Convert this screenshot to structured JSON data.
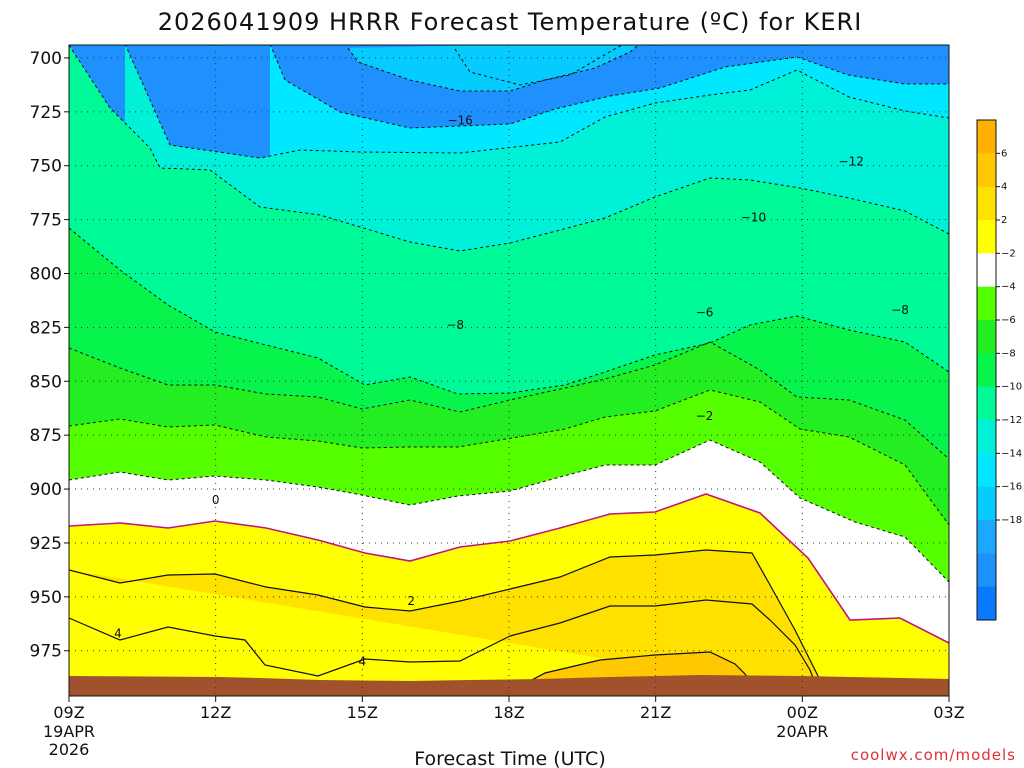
{
  "chart_data": {
    "type": "heatmap",
    "title": "2026041909 HRRR Forecast Temperature (ºC) for KERI",
    "xlabel": "Forecast Time (UTC)",
    "ylabel": "",
    "xlim": [
      9,
      27
    ],
    "ylim": [
      996,
      694
    ],
    "x_ticks": [
      {
        "value": 9,
        "label": "09Z",
        "sub1": "19APR",
        "sub2": "2026"
      },
      {
        "value": 12,
        "label": "12Z",
        "sub1": "",
        "sub2": ""
      },
      {
        "value": 15,
        "label": "15Z",
        "sub1": "",
        "sub2": ""
      },
      {
        "value": 18,
        "label": "18Z",
        "sub1": "",
        "sub2": ""
      },
      {
        "value": 21,
        "label": "21Z",
        "sub1": "",
        "sub2": ""
      },
      {
        "value": 24,
        "label": "00Z",
        "sub1": "20APR",
        "sub2": ""
      },
      {
        "value": 27,
        "label": "03Z",
        "sub1": "",
        "sub2": ""
      }
    ],
    "y_ticks": [
      700,
      725,
      750,
      775,
      800,
      825,
      850,
      875,
      900,
      925,
      950,
      975
    ],
    "colorbar": {
      "levels": [
        -20,
        -18,
        -16,
        -14,
        -12,
        -10,
        -8,
        -6,
        -4,
        -2,
        2,
        4,
        6,
        8
      ],
      "labels": [
        "-18",
        "-16",
        "-14",
        "-12",
        "-10",
        "-8",
        "-6",
        "-4",
        "-2",
        "2",
        "4",
        "6"
      ],
      "colors": [
        "#0a78ff",
        "#1e91ff",
        "#1ca8ff",
        "#06cbff",
        "#00e7ff",
        "#00f0d8",
        "#00fa98",
        "#06f44c",
        "#22ee22",
        "#55ff00",
        "#ffffff",
        "#ffff00",
        "#ffe100",
        "#ffc800",
        "#ffb000"
      ]
    },
    "ground_color": "#a0522d",
    "negative_contour_labels": [
      {
        "text": "-16",
        "t": 17.0,
        "p": 729
      },
      {
        "text": "-12",
        "t": 25.0,
        "p": 748
      },
      {
        "text": "-10",
        "t": 23.0,
        "p": 774
      },
      {
        "text": "-8",
        "t": 16.9,
        "p": 824
      },
      {
        "text": "-8",
        "t": 26.0,
        "p": 817
      },
      {
        "text": "-6",
        "t": 22.0,
        "p": 818
      },
      {
        "text": "-2",
        "t": 22.0,
        "p": 866
      }
    ],
    "zero_contour_labels": [
      {
        "text": "0",
        "t": 12.0,
        "p": 905
      }
    ],
    "positive_contour_labels": [
      {
        "text": "2",
        "t": 16.0,
        "p": 952
      },
      {
        "text": "4",
        "t": 10.0,
        "p": 967
      },
      {
        "text": "4",
        "t": 15.0,
        "p": 980
      }
    ]
  },
  "credit": "coolwx.com/models"
}
